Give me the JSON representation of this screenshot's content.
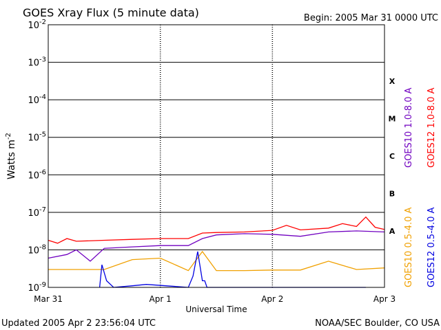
{
  "chart_data": {
    "type": "line",
    "title": "GOES Xray Flux (5 minute data)",
    "begin_label": "Begin:  2005 Mar 31 0000 UTC",
    "xlabel": "Universal Time",
    "ylabel": "Watts m",
    "ylabel_exp": "-2",
    "yscale": "log",
    "ylim": [
      1e-09,
      0.01
    ],
    "xlim": [
      "2005-03-31",
      "2005-04-03"
    ],
    "grid": true,
    "x_ticks": [
      {
        "label": "Mar 31",
        "date": "2005-03-31"
      },
      {
        "label": "Apr 1",
        "date": "2005-04-01"
      },
      {
        "label": "Apr 2",
        "date": "2005-04-02"
      },
      {
        "label": "Apr 3",
        "date": "2005-04-03"
      }
    ],
    "y_ticks": [
      {
        "base": "10",
        "exp": "-9",
        "value": 1e-09
      },
      {
        "base": "10",
        "exp": "-8",
        "value": 1e-08
      },
      {
        "base": "10",
        "exp": "-7",
        "value": 1e-07
      },
      {
        "base": "10",
        "exp": "-6",
        "value": 1e-06
      },
      {
        "base": "10",
        "exp": "-5",
        "value": 1e-05
      },
      {
        "base": "10",
        "exp": "-4",
        "value": 0.0001
      },
      {
        "base": "10",
        "exp": "-3",
        "value": 0.001
      },
      {
        "base": "10",
        "exp": "-2",
        "value": 0.01
      }
    ],
    "flare_classes": [
      {
        "label": "A",
        "value": 1e-08
      },
      {
        "label": "B",
        "value": 1e-07
      },
      {
        "label": "C",
        "value": 1e-06
      },
      {
        "label": "M",
        "value": 1e-05
      },
      {
        "label": "X",
        "value": 0.0001
      }
    ],
    "series": [
      {
        "name": "GOES12 1.0-8.0 A",
        "color": "#ff0000",
        "x": [
          "2005-03-31 00:00",
          "2005-03-31 02:00",
          "2005-03-31 04:00",
          "2005-03-31 06:00",
          "2005-03-31 12:00",
          "2005-03-31 18:00",
          "2005-04-01 00:00",
          "2005-04-01 06:00",
          "2005-04-01 09:00",
          "2005-04-01 12:00",
          "2005-04-01 18:00",
          "2005-04-02 00:00",
          "2005-04-02 03:00",
          "2005-04-02 06:00",
          "2005-04-02 12:00",
          "2005-04-02 15:00",
          "2005-04-02 18:00",
          "2005-04-02 20:00",
          "2005-04-02 22:00",
          "2005-04-03 00:00"
        ],
        "values": [
          1.8e-08,
          1.5e-08,
          2e-08,
          1.7e-08,
          1.8e-08,
          1.9e-08,
          2e-08,
          2e-08,
          2.8e-08,
          2.9e-08,
          3e-08,
          3.3e-08,
          4.5e-08,
          3.4e-08,
          3.8e-08,
          5e-08,
          4.2e-08,
          7.5e-08,
          4e-08,
          3.5e-08
        ]
      },
      {
        "name": "GOES10 1.0-8.0 A",
        "color": "#7000c0",
        "x": [
          "2005-03-31 00:00",
          "2005-03-31 04:00",
          "2005-03-31 06:00",
          "2005-03-31 09:00",
          "2005-03-31 12:00",
          "2005-03-31 18:00",
          "2005-04-01 00:00",
          "2005-04-01 06:00",
          "2005-04-01 09:00",
          "2005-04-01 12:00",
          "2005-04-01 18:00",
          "2005-04-02 00:00",
          "2005-04-02 06:00",
          "2005-04-02 12:00",
          "2005-04-02 18:00",
          "2005-04-03 00:00"
        ],
        "values": [
          6e-09,
          7.5e-09,
          1e-08,
          5e-09,
          1.1e-08,
          1.2e-08,
          1.3e-08,
          1.3e-08,
          2e-08,
          2.5e-08,
          2.7e-08,
          2.6e-08,
          2.3e-08,
          3e-08,
          3.2e-08,
          3e-08
        ]
      },
      {
        "name": "GOES10 0.5-4.0 A",
        "color": "#f0a000",
        "x": [
          "2005-03-31 00:00",
          "2005-03-31 06:00",
          "2005-03-31 12:00",
          "2005-03-31 18:00",
          "2005-04-01 00:00",
          "2005-04-01 06:00",
          "2005-04-01 09:00",
          "2005-04-01 12:00",
          "2005-04-01 18:00",
          "2005-04-02 00:00",
          "2005-04-02 06:00",
          "2005-04-02 12:00",
          "2005-04-02 18:00",
          "2005-04-03 00:00"
        ],
        "values": [
          3e-09,
          3e-09,
          3e-09,
          5.5e-09,
          6e-09,
          2.8e-09,
          9e-09,
          2.8e-09,
          2.8e-09,
          2.9e-09,
          2.9e-09,
          5e-09,
          3e-09,
          3.3e-09
        ]
      },
      {
        "name": "GOES12 0.5-4.0 A",
        "color": "#0000e0",
        "x": [
          "2005-03-31 11:00",
          "2005-03-31 11:30",
          "2005-03-31 12:30",
          "2005-03-31 14:00",
          "2005-03-31 18:00",
          "2005-03-31 21:00",
          "2005-04-01 06:00",
          "2005-04-01 07:00",
          "2005-04-01 08:00",
          "2005-04-01 09:00",
          "2005-04-01 09:30",
          "2005-04-01 10:00",
          "2005-04-01 22:00",
          "2005-04-02 11:00",
          "2005-04-02 20:00"
        ],
        "values": [
          1e-09,
          4e-09,
          1.5e-09,
          1e-09,
          1.1e-09,
          1.2e-09,
          1e-09,
          2e-09,
          9e-09,
          1.5e-09,
          1.5e-09,
          1e-09,
          1e-09,
          1e-09,
          1e-09
        ]
      }
    ],
    "right_labels": {
      "upper_left": "GOES10 1.0-8.0 A",
      "upper_right": "GOES12 1.0-8.0 A",
      "lower_left": "GOES10 0.5-4.0 A",
      "lower_right": "GOES12 0.5-4.0 A"
    }
  },
  "footer": {
    "updated": "Updated 2005 Apr  2 23:56:04 UTC",
    "source": "NOAA/SEC Boulder, CO USA"
  }
}
